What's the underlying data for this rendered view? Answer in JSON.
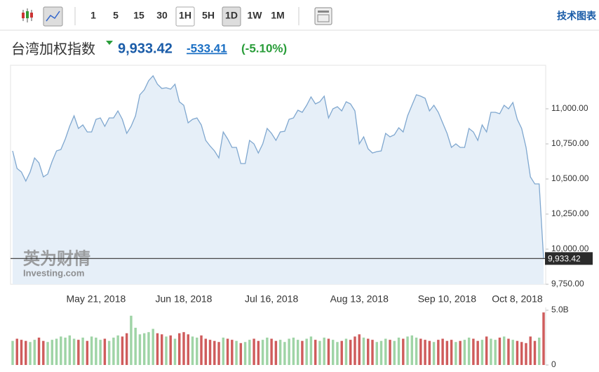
{
  "toolbar": {
    "buttons": [
      "1",
      "5",
      "15",
      "30",
      "1H",
      "5H",
      "1D",
      "1W",
      "1M"
    ],
    "right_link": "技术图表"
  },
  "header": {
    "title": "台湾加权指数",
    "price": "9,933.42",
    "change": "-533.41",
    "change_pct": "(-5.10%)"
  },
  "watermark": {
    "cn": "英为财情",
    "en": "Investing.com"
  },
  "chart_data": {
    "type": "line",
    "categories": [
      null,
      null,
      null,
      null,
      null,
      null,
      null,
      null,
      null,
      null,
      null,
      null,
      null,
      null,
      null,
      null,
      null,
      null,
      null,
      "May 21, 2018",
      null,
      null,
      null,
      null,
      null,
      null,
      null,
      null,
      null,
      null,
      null,
      null,
      null,
      null,
      null,
      null,
      null,
      null,
      null,
      "Jun 18, 2018",
      null,
      null,
      null,
      null,
      null,
      null,
      null,
      null,
      null,
      null,
      null,
      null,
      null,
      null,
      null,
      null,
      null,
      null,
      null,
      "Jul 16, 2018",
      null,
      null,
      null,
      null,
      null,
      null,
      null,
      null,
      null,
      null,
      null,
      null,
      null,
      null,
      null,
      null,
      null,
      null,
      null,
      "Aug 13, 2018",
      null,
      null,
      null,
      null,
      null,
      null,
      null,
      null,
      null,
      null,
      null,
      null,
      null,
      null,
      null,
      null,
      null,
      null,
      null,
      "Sep 10, 2018",
      null,
      null,
      null,
      null,
      null,
      null,
      null,
      null,
      null,
      null,
      null,
      null,
      null,
      null,
      null,
      "Oct 8, 2018",
      null,
      null,
      null,
      null,
      null,
      null
    ],
    "values": [
      10700,
      10575,
      10550,
      10485,
      10550,
      10650,
      10615,
      10515,
      10535,
      10625,
      10700,
      10710,
      10785,
      10875,
      10950,
      10860,
      10885,
      10835,
      10835,
      10925,
      10935,
      10875,
      10935,
      10935,
      10985,
      10925,
      10825,
      10875,
      10950,
      11100,
      11135,
      11200,
      11235,
      11175,
      11145,
      11150,
      11140,
      11175,
      11050,
      11025,
      10900,
      10925,
      10935,
      10885,
      10775,
      10735,
      10700,
      10650,
      10835,
      10785,
      10725,
      10725,
      10610,
      10610,
      10775,
      10750,
      10685,
      10750,
      10860,
      10825,
      10775,
      10835,
      10840,
      10925,
      10935,
      10990,
      10975,
      11025,
      11085,
      11035,
      11050,
      11090,
      10935,
      11000,
      11015,
      10985,
      11050,
      11035,
      10985,
      10750,
      10800,
      10715,
      10685,
      10695,
      10700,
      10825,
      10800,
      10815,
      10865,
      10835,
      10950,
      11025,
      11100,
      11090,
      11075,
      10985,
      11025,
      10975,
      10900,
      10825,
      10725,
      10750,
      10725,
      10725,
      10860,
      10835,
      10775,
      10885,
      10835,
      10975,
      10975,
      10965,
      11025,
      11000,
      11045,
      10925,
      10860,
      10725,
      10515,
      10465,
      10465,
      9933.42
    ],
    "color": "#7fa7cf",
    "area_color": "#e6eff8",
    "ylim": [
      9750,
      11310
    ],
    "yticks": [
      {
        "value": 9750,
        "label": "9,750.00"
      },
      {
        "value": 10000,
        "label": "10,000.00"
      },
      {
        "value": 10250,
        "label": "10,250.00"
      },
      {
        "value": 10500,
        "label": "10,500.00"
      },
      {
        "value": 10750,
        "label": "10,750.00"
      },
      {
        "value": 11000,
        "label": "11,000.00"
      }
    ],
    "volume": [
      2.2,
      2.4,
      2.3,
      2.2,
      2.1,
      2.3,
      2.5,
      2.2,
      2.1,
      2.3,
      2.4,
      2.6,
      2.5,
      2.7,
      2.4,
      2.3,
      2.5,
      2.2,
      2.6,
      2.5,
      2.3,
      2.4,
      2.2,
      2.5,
      2.7,
      2.6,
      2.9,
      4.5,
      3.4,
      2.8,
      2.9,
      3.0,
      3.3,
      2.9,
      2.8,
      2.6,
      2.7,
      2.4,
      2.9,
      3.0,
      2.8,
      2.6,
      2.5,
      2.7,
      2.4,
      2.3,
      2.2,
      2.1,
      2.5,
      2.4,
      2.3,
      2.2,
      2.0,
      2.1,
      2.3,
      2.4,
      2.2,
      2.3,
      2.5,
      2.4,
      2.2,
      2.3,
      2.1,
      2.4,
      2.5,
      2.3,
      2.2,
      2.4,
      2.6,
      2.3,
      2.2,
      2.5,
      2.4,
      2.3,
      2.1,
      2.2,
      2.4,
      2.3,
      2.6,
      2.8,
      2.5,
      2.4,
      2.3,
      2.1,
      2.2,
      2.4,
      2.3,
      2.2,
      2.5,
      2.4,
      2.6,
      2.7,
      2.5,
      2.4,
      2.3,
      2.2,
      2.1,
      2.3,
      2.4,
      2.2,
      2.3,
      2.1,
      2.2,
      2.3,
      2.5,
      2.4,
      2.2,
      2.3,
      2.6,
      2.4,
      2.3,
      2.5,
      2.6,
      2.4,
      2.3,
      2.2,
      2.1,
      2.0,
      2.6,
      2.2,
      2.5,
      4.8
    ],
    "up_color": "#9fd4a6",
    "down_color": "#cf5c5c",
    "vlim": [
      0,
      5
    ],
    "vticks": [
      0,
      {
        "value": 5,
        "label": "5.0B"
      }
    ]
  }
}
